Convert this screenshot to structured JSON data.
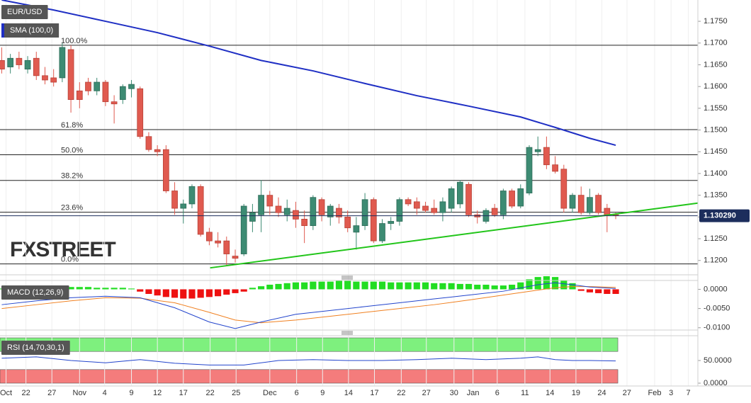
{
  "chart_data": [
    {
      "type": "candlestick",
      "title": "EUR/USD",
      "open": [
        1.166,
        1.1645,
        1.1665,
        1.164,
        1.1665,
        1.1625,
        1.162,
        1.162,
        1.1685,
        1.159,
        1.161,
        1.159,
        1.161,
        1.1565,
        1.157,
        1.1595,
        1.1595,
        1.1485,
        1.1455,
        1.1455,
        1.136,
        1.132,
        1.133,
        1.137,
        1.1265,
        1.1245,
        1.1245,
        1.121,
        1.1215,
        1.129,
        1.1305,
        1.135,
        1.1325,
        1.1305,
        1.1315,
        1.1295,
        1.128,
        1.134,
        1.13,
        1.132,
        1.13,
        1.1265,
        1.128,
        1.134,
        1.1245,
        1.1285,
        1.129,
        1.134,
        1.1335,
        1.1325,
        1.132,
        1.131,
        1.132,
        1.133,
        1.1375,
        1.1305,
        1.129,
        1.132,
        1.1305,
        1.136,
        1.1325,
        1.1355,
        1.145,
        1.146,
        1.142,
        1.141,
        1.132,
        1.135,
        1.131,
        1.135,
        1.132,
        1.1305
      ],
      "high": [
        1.169,
        1.1675,
        1.168,
        1.167,
        1.168,
        1.1645,
        1.164,
        1.17,
        1.1695,
        1.161,
        1.162,
        1.162,
        1.1615,
        1.158,
        1.1605,
        1.1615,
        1.16,
        1.1495,
        1.1465,
        1.1465,
        1.138,
        1.134,
        1.1375,
        1.1375,
        1.1275,
        1.1265,
        1.1255,
        1.1225,
        1.133,
        1.133,
        1.1385,
        1.136,
        1.1345,
        1.134,
        1.1335,
        1.1315,
        1.135,
        1.1345,
        1.133,
        1.133,
        1.1315,
        1.13,
        1.1355,
        1.1345,
        1.1295,
        1.13,
        1.1345,
        1.1345,
        1.1345,
        1.1335,
        1.134,
        1.1345,
        1.137,
        1.1385,
        1.138,
        1.1315,
        1.132,
        1.133,
        1.1365,
        1.1365,
        1.1375,
        1.1465,
        1.1485,
        1.1485,
        1.144,
        1.142,
        1.1355,
        1.137,
        1.1365,
        1.1355,
        1.133,
        1.131
      ],
      "low": [
        1.163,
        1.163,
        1.164,
        1.163,
        1.1615,
        1.1605,
        1.16,
        1.161,
        1.154,
        1.155,
        1.158,
        1.158,
        1.1555,
        1.1515,
        1.156,
        1.1575,
        1.148,
        1.145,
        1.144,
        1.1355,
        1.1305,
        1.1285,
        1.132,
        1.1255,
        1.1235,
        1.123,
        1.1188,
        1.1195,
        1.121,
        1.1265,
        1.1265,
        1.1305,
        1.13,
        1.129,
        1.1275,
        1.124,
        1.127,
        1.129,
        1.128,
        1.1285,
        1.1265,
        1.1225,
        1.127,
        1.124,
        1.124,
        1.127,
        1.128,
        1.1325,
        1.1305,
        1.131,
        1.1305,
        1.129,
        1.131,
        1.132,
        1.13,
        1.1285,
        1.1285,
        1.13,
        1.1295,
        1.132,
        1.132,
        1.135,
        1.144,
        1.141,
        1.14,
        1.131,
        1.131,
        1.1305,
        1.1305,
        1.1305,
        1.1265,
        1.1295
      ],
      "close": [
        1.164,
        1.1665,
        1.165,
        1.166,
        1.1625,
        1.1615,
        1.161,
        1.169,
        1.157,
        1.157,
        1.159,
        1.161,
        1.1565,
        1.156,
        1.16,
        1.1605,
        1.1485,
        1.1455,
        1.145,
        1.136,
        1.132,
        1.133,
        1.137,
        1.126,
        1.1245,
        1.124,
        1.1215,
        1.1205,
        1.1325,
        1.131,
        1.135,
        1.1325,
        1.131,
        1.132,
        1.1295,
        1.128,
        1.1345,
        1.1305,
        1.1325,
        1.13,
        1.1275,
        1.128,
        1.134,
        1.1245,
        1.1285,
        1.129,
        1.134,
        1.133,
        1.132,
        1.1315,
        1.131,
        1.1335,
        1.1365,
        1.138,
        1.1305,
        1.13,
        1.1315,
        1.1305,
        1.136,
        1.1325,
        1.1365,
        1.146,
        1.1455,
        1.142,
        1.1405,
        1.132,
        1.135,
        1.131,
        1.1345,
        1.131,
        1.1305,
        1.1303
      ],
      "up_color": "#3d8b73",
      "down_color": "#e05a4f",
      "sma": {
        "name": "SMA (100,0)",
        "color": "#1f2fc4",
        "x": [
          0,
          6,
          12,
          18,
          24,
          30,
          36,
          42,
          48,
          54,
          60,
          64,
          68,
          71
        ],
        "values": [
          1.1799,
          1.1776,
          1.175,
          1.1724,
          1.1693,
          1.166,
          1.1636,
          1.1607,
          1.1579,
          1.1555,
          1.153,
          1.1506,
          1.1481,
          1.1465
        ]
      },
      "trendline": {
        "color": "#22c51a",
        "x": [
          24.1,
          80.5
        ],
        "values": [
          1.1183,
          1.1332
        ]
      },
      "fib_levels": [
        {
          "label": "100.0%",
          "value": 1.1695
        },
        {
          "label": "61.8%",
          "value": 1.1501
        },
        {
          "label": "50.0%",
          "value": 1.1443
        },
        {
          "label": "38.2%",
          "value": 1.1384
        },
        {
          "label": "23.6%",
          "value": 1.1311
        },
        {
          "label": "0.0%",
          "value": 1.1192
        }
      ],
      "last_price": {
        "value": 1.13029,
        "label": "1.130290"
      },
      "watermark": "FXSTREET",
      "xlim": [
        -0.2,
        80.5
      ],
      "ylim": [
        1.1167,
        1.1799
      ],
      "yticks": [
        {
          "value": 1.175,
          "label": "1.1750"
        },
        {
          "value": 1.17,
          "label": "1.1700"
        },
        {
          "value": 1.165,
          "label": "1.1650"
        },
        {
          "value": 1.16,
          "label": "1.1600"
        },
        {
          "value": 1.155,
          "label": "1.1550"
        },
        {
          "value": 1.15,
          "label": "1.1500"
        },
        {
          "value": 1.145,
          "label": "1.1450"
        },
        {
          "value": 1.14,
          "label": "1.1400"
        },
        {
          "value": 1.135,
          "label": "1.1350"
        },
        {
          "value": 1.13,
          "label": "1.1300"
        },
        {
          "value": 1.125,
          "label": "1.1250"
        },
        {
          "value": 1.12,
          "label": "1.1200"
        }
      ],
      "grid": true
    },
    {
      "type": "macd",
      "title": "MACD (12,26,9)",
      "histogram": [
        0.0002,
        0.0002,
        0.0002,
        0.0002,
        0.0002,
        0.0004,
        0.0004,
        0.0004,
        0.0006,
        0.0006,
        0.0006,
        0.0004,
        0.0004,
        0.0004,
        0.0004,
        0.0002,
        -0.0006,
        -0.0012,
        -0.0016,
        -0.002,
        -0.0022,
        -0.0024,
        -0.0024,
        -0.0022,
        -0.002,
        -0.0018,
        -0.0014,
        -0.001,
        -0.0006,
        0.0004,
        0.0008,
        0.0012,
        0.0014,
        0.0016,
        0.0018,
        0.0018,
        0.002,
        0.002,
        0.002,
        0.0022,
        0.0022,
        0.002,
        0.002,
        0.002,
        0.002,
        0.0018,
        0.0018,
        0.0018,
        0.0018,
        0.0018,
        0.0016,
        0.0016,
        0.0016,
        0.0014,
        0.0014,
        0.0012,
        0.0012,
        0.001,
        0.001,
        0.0012,
        0.0018,
        0.0026,
        0.0032,
        0.0034,
        0.0032,
        0.0024,
        0.0016,
        -0.0004,
        -0.0008,
        -0.001,
        -0.0012,
        -0.0012
      ],
      "up_color": "#22dd22",
      "down_color": "#ee1111",
      "macd": {
        "color": "#2244cc",
        "x": [
          0,
          4,
          8,
          12,
          16,
          20,
          24,
          27,
          30,
          34,
          38,
          42,
          46,
          50,
          54,
          58,
          62,
          64,
          66,
          68,
          71
        ],
        "values": [
          -0.004,
          -0.003,
          -0.0022,
          -0.0018,
          -0.0022,
          -0.0048,
          -0.0085,
          -0.0102,
          -0.0085,
          -0.0065,
          -0.0055,
          -0.0045,
          -0.0035,
          -0.0025,
          -0.0015,
          -0.0005,
          0.0012,
          0.0017,
          0.0012,
          0.0006,
          0.0002
        ]
      },
      "signal": {
        "color": "#f08020",
        "x": [
          0,
          4,
          8,
          12,
          16,
          20,
          24,
          27,
          30,
          34,
          38,
          42,
          46,
          50,
          54,
          58,
          62,
          64,
          66,
          68,
          71
        ],
        "values": [
          -0.005,
          -0.004,
          -0.003,
          -0.0022,
          -0.0023,
          -0.0035,
          -0.006,
          -0.008,
          -0.0087,
          -0.008,
          -0.007,
          -0.006,
          -0.005,
          -0.004,
          -0.0028,
          -0.0015,
          -0.0002,
          0.0004,
          0.0007,
          0.0007,
          0.0005
        ]
      },
      "xlim": [
        -0.2,
        80.5
      ],
      "ylim": [
        -0.0106,
        0.0023
      ],
      "yticks": [
        {
          "value": 0,
          "label": "0.0000"
        },
        {
          "value": -0.005,
          "label": "-0.0050"
        },
        {
          "value": -0.01,
          "label": "-0.0100"
        }
      ],
      "grid": true
    },
    {
      "type": "rsi",
      "title": "RSI (14,70,30,1)",
      "rsi": {
        "color": "#2244cc",
        "x": [
          0,
          4,
          8,
          12,
          16,
          20,
          24,
          28,
          32,
          36,
          40,
          44,
          48,
          52,
          56,
          60,
          62,
          64,
          66,
          68,
          71
        ],
        "values": [
          55,
          58,
          50,
          45,
          52,
          44,
          40,
          40,
          50,
          52,
          50,
          50,
          52,
          55,
          52,
          55,
          58,
          52,
          50,
          50,
          49
        ]
      },
      "bands": [
        {
          "range": [
            70,
            100
          ],
          "color": "#7ef07e"
        },
        {
          "range": [
            0,
            30
          ],
          "color": "#f47c7c"
        }
      ],
      "xlim": [
        -0.2,
        80.5
      ],
      "ylim": [
        -6.25,
        104.7
      ],
      "yticks": [
        {
          "value": 50,
          "label": "50.0000"
        },
        {
          "value": 0,
          "label": "0.0000"
        }
      ],
      "xticks": [
        {
          "value": 0.5,
          "label": "Oct"
        },
        {
          "value": 2.8,
          "label": "22"
        },
        {
          "value": 5.8,
          "label": "27"
        },
        {
          "value": 9.0,
          "label": "Nov"
        },
        {
          "value": 11.9,
          "label": "4"
        },
        {
          "value": 15.0,
          "label": "9"
        },
        {
          "value": 18.0,
          "label": "12"
        },
        {
          "value": 21.0,
          "label": "17"
        },
        {
          "value": 24.1,
          "label": "22"
        },
        {
          "value": 27.1,
          "label": "25"
        },
        {
          "value": 31.0,
          "label": "Dec"
        },
        {
          "value": 34.1,
          "label": "6"
        },
        {
          "value": 37.1,
          "label": "9"
        },
        {
          "value": 40.1,
          "label": "14"
        },
        {
          "value": 43.1,
          "label": "17"
        },
        {
          "value": 46.2,
          "label": "22"
        },
        {
          "value": 49.1,
          "label": "27"
        },
        {
          "value": 52.3,
          "label": "30"
        },
        {
          "value": 54.5,
          "label": "Jan"
        },
        {
          "value": 57.3,
          "label": "6"
        },
        {
          "value": 60.5,
          "label": "11"
        },
        {
          "value": 63.4,
          "label": "14"
        },
        {
          "value": 66.4,
          "label": "19"
        },
        {
          "value": 69.4,
          "label": "24"
        },
        {
          "value": 72.3,
          "label": "27"
        },
        {
          "value": 75.5,
          "label": "Feb"
        },
        {
          "value": 77.4,
          "label": "3"
        },
        {
          "value": 79.4,
          "label": "7"
        }
      ],
      "grid": true
    }
  ]
}
